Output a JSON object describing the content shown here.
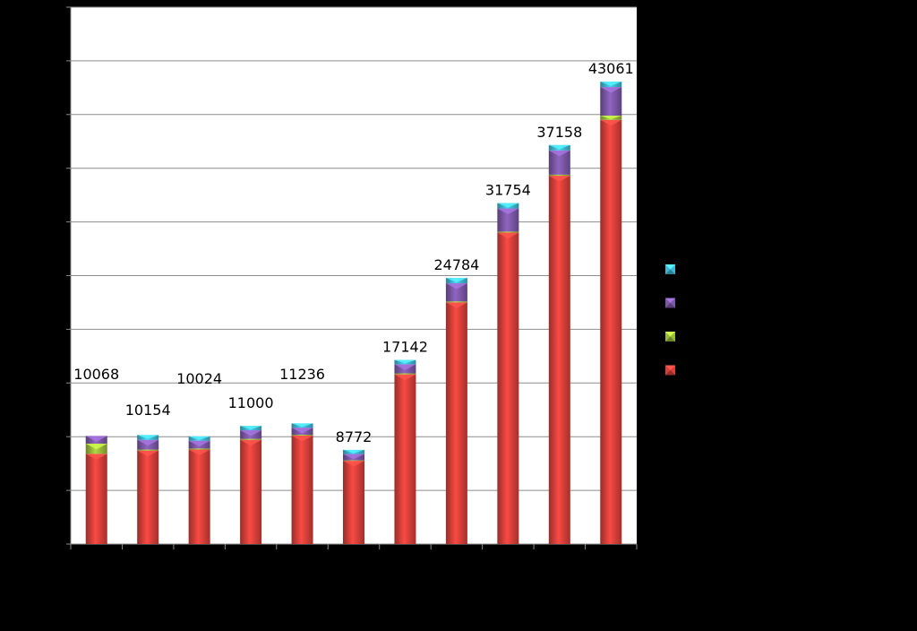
{
  "chart_data": {
    "type": "bar",
    "stacked": true,
    "categories": [
      "",
      "",
      "",
      "",
      "",
      "",
      "",
      "",
      "",
      "",
      ""
    ],
    "totals": [
      10068,
      10154,
      10024,
      11000,
      11236,
      8772,
      17142,
      24784,
      31754,
      37158,
      43061
    ],
    "series": [
      {
        "color": "#d9403a",
        "values": [
          8400,
          8700,
          8800,
          9700,
          10100,
          7750,
          15800,
          22500,
          29000,
          34300,
          39500
        ]
      },
      {
        "color": "#9bbb3a",
        "values": [
          950,
          100,
          100,
          100,
          80,
          50,
          100,
          100,
          100,
          100,
          400
        ]
      },
      {
        "color": "#7d58a8",
        "values": [
          718,
          900,
          724,
          800,
          656,
          582,
          842,
          1684,
          2154,
          2258,
          2661
        ]
      },
      {
        "color": "#3fb8d4",
        "values": [
          0,
          454,
          400,
          400,
          400,
          390,
          400,
          500,
          500,
          500,
          500
        ]
      }
    ],
    "ylim": [
      0,
      50000
    ],
    "gridlines": true,
    "legend_position": "right"
  }
}
